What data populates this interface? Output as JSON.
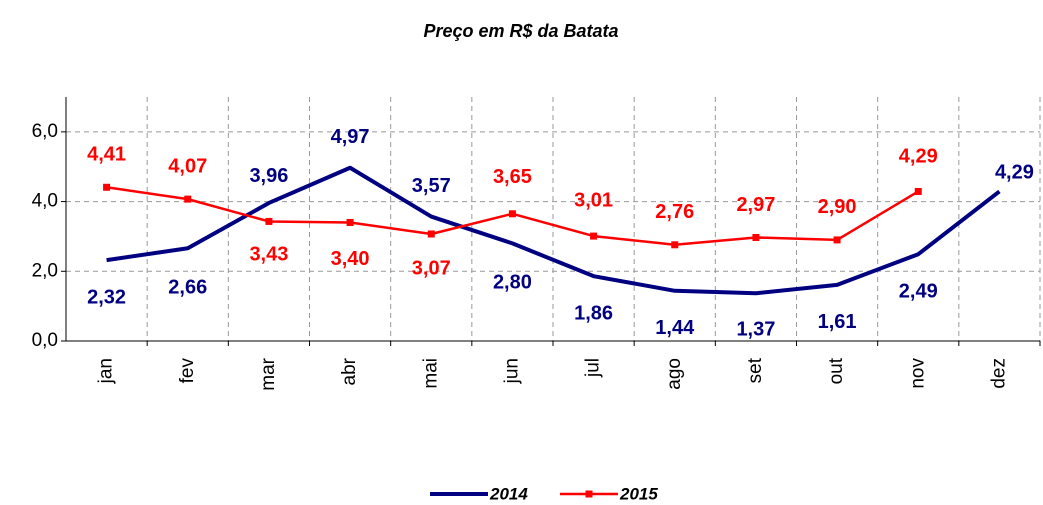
{
  "chart_data": {
    "type": "line",
    "title": "Preço em R$ da Batata",
    "categories": [
      "jan",
      "fev",
      "mar",
      "abr",
      "mai",
      "jun",
      "jul",
      "ago",
      "set",
      "out",
      "nov",
      "dez"
    ],
    "series": [
      {
        "name": "2014",
        "color": "#000080",
        "values": [
          2.32,
          2.66,
          3.96,
          4.97,
          3.57,
          2.8,
          1.86,
          1.44,
          1.37,
          1.61,
          2.49,
          4.29
        ],
        "value_labels": [
          "2,32",
          "2,66",
          "3,96",
          "4,97",
          "3,57",
          "2,80",
          "1,86",
          "1,44",
          "1,37",
          "1,61",
          "2,49",
          "4,29"
        ]
      },
      {
        "name": "2015",
        "color": "#ff0000",
        "values": [
          4.41,
          4.07,
          3.43,
          3.4,
          3.07,
          3.65,
          3.01,
          2.76,
          2.97,
          2.9,
          4.29,
          null
        ],
        "value_labels": [
          "4,41",
          "4,07",
          "3,43",
          "3,40",
          "3,07",
          "3,65",
          "3,01",
          "2,76",
          "2,97",
          "2,90",
          "4,29",
          null
        ]
      }
    ],
    "ylim": [
      0,
      7
    ],
    "yticks": [
      {
        "value": 0,
        "label": "0,0"
      },
      {
        "value": 2,
        "label": "2,0"
      },
      {
        "value": 4,
        "label": "4,0"
      },
      {
        "value": 6,
        "label": "6,0"
      }
    ],
    "grid": true,
    "legend": "bottom"
  }
}
